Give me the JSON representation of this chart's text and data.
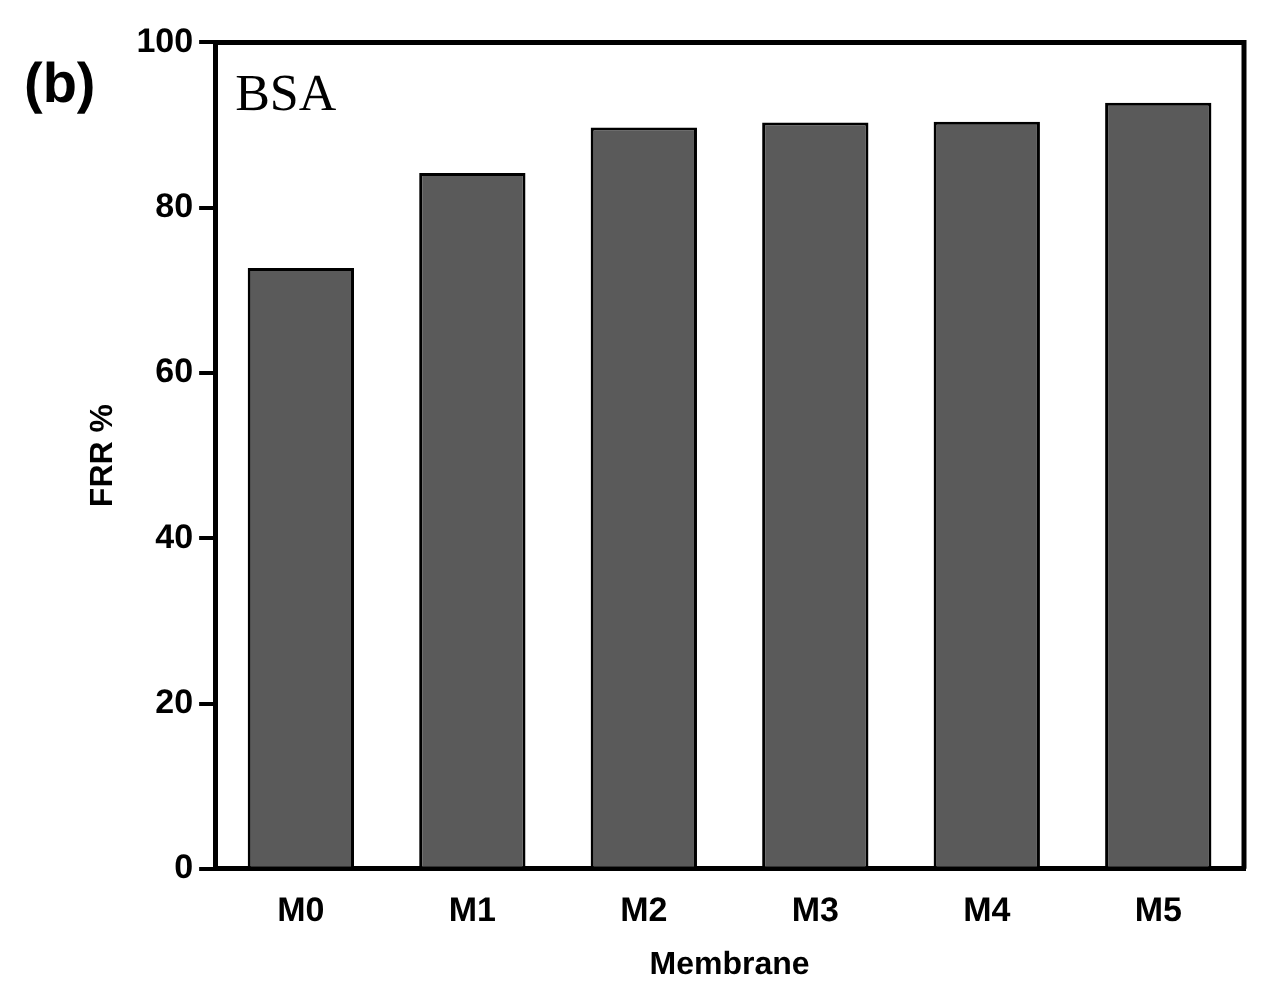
{
  "chart_data": {
    "type": "bar",
    "xlabel": "Membrane",
    "ylabel": "FRR %",
    "categories": [
      "M0",
      "M1",
      "M2",
      "M3",
      "M4",
      "M5"
    ],
    "values": [
      72.7,
      84.2,
      89.7,
      90.3,
      90.4,
      92.7
    ],
    "color": "#5a5a5a",
    "ylim": [
      0,
      100
    ],
    "yticks": [
      0,
      20,
      40,
      60,
      80,
      100
    ],
    "grid": false,
    "legend": false,
    "annotations": [
      "(b)",
      "BSA"
    ]
  }
}
